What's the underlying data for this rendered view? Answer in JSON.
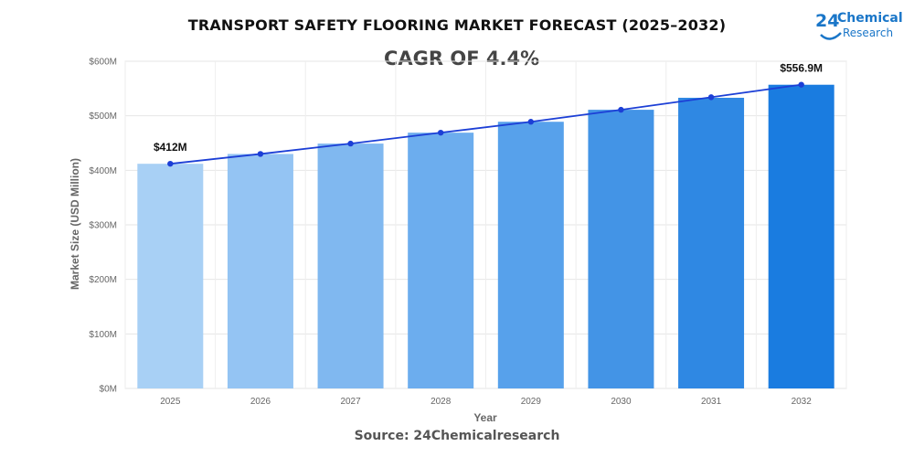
{
  "header": {
    "title": "TRANSPORT SAFETY FLOORING MARKET FORECAST (2025–2032)",
    "cagr": "CAGR OF 4.4%"
  },
  "logo": {
    "number": "24",
    "word1": "Chemical",
    "word2": "Research",
    "color": "#1a76c8"
  },
  "footer": {
    "source": "Source: 24Chemicalresearch"
  },
  "chart_data": {
    "type": "bar",
    "categories": [
      "2025",
      "2026",
      "2027",
      "2028",
      "2029",
      "2030",
      "2031",
      "2032"
    ],
    "values": [
      412,
      430,
      449,
      469,
      489,
      511,
      533,
      556.9
    ],
    "line_values": [
      412,
      430,
      449,
      469,
      489,
      511,
      534,
      557
    ],
    "data_labels": [
      {
        "index": 0,
        "text": "$412M"
      },
      {
        "index": 7,
        "text": "$556.9M"
      }
    ],
    "xlabel": "Year",
    "ylabel": "Market Size (USD Million)",
    "ylim": [
      0,
      600
    ],
    "yticks": [
      0,
      100,
      200,
      300,
      400,
      500,
      600
    ],
    "ytick_labels": [
      "$0M",
      "$100M",
      "$200M",
      "$300M",
      "$400M",
      "$500M",
      "$600M"
    ],
    "grid": true,
    "bar_colors": [
      "#a8d0f5",
      "#94c4f3",
      "#80b8f0",
      "#6cadee",
      "#57a1eb",
      "#4394e6",
      "#2f88e3",
      "#1a7ce0"
    ],
    "line_color": "#1c3fd6"
  }
}
